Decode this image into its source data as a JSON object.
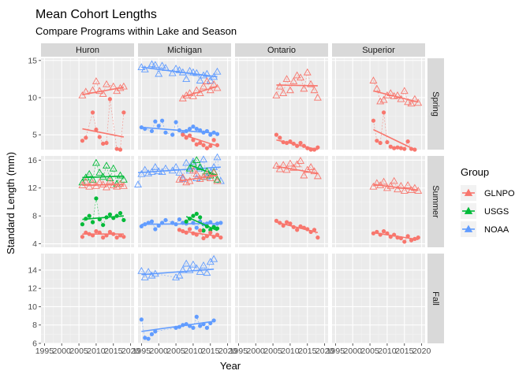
{
  "chart_data": {
    "type": "scatter",
    "title": "Mean Cohort Lengths",
    "subtitle": "Compare Programs within Lake and Season",
    "xlabel": "Year",
    "ylabel": "Standard Length  (mm)",
    "xlim": [
      1994,
      2021
    ],
    "x_ticks": [
      1995,
      2000,
      2005,
      2010,
      2015,
      2020
    ],
    "x_tick_labels": [
      "1995",
      "2000",
      "2005",
      "2010",
      "2015",
      "2020"
    ],
    "grid": true,
    "facet_cols": [
      "Huron",
      "Michigan",
      "Ontario",
      "Superior"
    ],
    "facet_rows": [
      {
        "name": "Spring",
        "ylim": [
          3,
          15.3
        ],
        "ticks": [
          5,
          10,
          15
        ],
        "tick_labels": [
          "5",
          "10",
          "15"
        ]
      },
      {
        "name": "Summer",
        "ylim": [
          3.5,
          16.6
        ],
        "ticks": [
          4,
          8,
          12,
          16
        ],
        "tick_labels": [
          "4",
          "8",
          "12",
          "16"
        ]
      },
      {
        "name": "Fall",
        "ylim": [
          6,
          15.8
        ],
        "ticks": [
          6,
          8,
          10,
          12,
          14
        ],
        "tick_labels": [
          "6",
          "8",
          "10",
          "12",
          "14"
        ]
      }
    ],
    "legend": {
      "title": "Group",
      "position": "right",
      "entries": [
        {
          "name": "GLNPO",
          "color": "#F8766D"
        },
        {
          "name": "USGS",
          "color": "#00BA38"
        },
        {
          "name": "NOAA",
          "color": "#619CFF"
        }
      ]
    },
    "series": [
      {
        "lake": "Huron",
        "season": "Spring",
        "group": "GLNPO",
        "marker": "triangle",
        "x": [
          2006,
          2007,
          2009,
          2010,
          2011,
          2012,
          2013,
          2015,
          2016,
          2017,
          2018
        ],
        "y": [
          10.3,
          10.8,
          11.0,
          12.2,
          10.9,
          10.5,
          11.8,
          11.5,
          10.9,
          11.3,
          11.5
        ],
        "fit": [
          10.4,
          11.4
        ]
      },
      {
        "lake": "Huron",
        "season": "Spring",
        "group": "GLNPO",
        "marker": "circle",
        "x": [
          2006,
          2007,
          2009,
          2010,
          2011,
          2012,
          2013,
          2014,
          2016,
          2017,
          2018
        ],
        "y": [
          4.2,
          4.6,
          8.0,
          5.7,
          4.7,
          3.8,
          3.9,
          9.8,
          3.1,
          3.0,
          8.0
        ],
        "fit": [
          5.8,
          4.7
        ]
      },
      {
        "lake": "Michigan",
        "season": "Spring",
        "group": "NOAA",
        "marker": "triangle",
        "x": [
          1995,
          1996,
          1998,
          1999,
          2000,
          2001,
          2002,
          2004,
          2005,
          2006,
          2007,
          2008,
          2009,
          2010,
          2011,
          2012,
          2013,
          2014,
          2015,
          2016,
          2017
        ],
        "y": [
          14.1,
          13.8,
          14.5,
          14.4,
          13.2,
          14.3,
          14.0,
          13.3,
          13.9,
          13.7,
          13.4,
          12.5,
          13.6,
          13.4,
          13.3,
          12.3,
          13.0,
          13.2,
          12.3,
          12.8,
          13.5
        ],
        "fit": [
          14.1,
          12.8
        ]
      },
      {
        "lake": "Michigan",
        "season": "Spring",
        "group": "GLNPO",
        "marker": "triangle",
        "x": [
          2007,
          2008,
          2009,
          2010,
          2011,
          2012,
          2013,
          2014,
          2015,
          2016,
          2017
        ],
        "y": [
          9.9,
          10.3,
          10.6,
          10.2,
          11.0,
          10.6,
          11.5,
          12.2,
          11.0,
          11.8,
          11.3
        ],
        "fit": [
          10.1,
          11.5
        ]
      },
      {
        "lake": "Michigan",
        "season": "Spring",
        "group": "NOAA",
        "marker": "circle",
        "x": [
          1995,
          1996,
          1998,
          1999,
          2000,
          2001,
          2002,
          2004,
          2005,
          2006,
          2007,
          2008,
          2009,
          2010,
          2011,
          2012,
          2013,
          2014,
          2015,
          2016,
          2017
        ],
        "y": [
          6.0,
          5.8,
          5.5,
          6.8,
          6.2,
          6.9,
          5.3,
          5.0,
          6.7,
          5.6,
          5.2,
          5.5,
          5.8,
          6.1,
          5.8,
          5.6,
          5.3,
          5.5,
          5.0,
          5.3,
          5.1
        ],
        "fit": [
          6.0,
          5.2
        ]
      },
      {
        "lake": "Michigan",
        "season": "Spring",
        "group": "GLNPO",
        "marker": "circle",
        "x": [
          2007,
          2008,
          2009,
          2010,
          2011,
          2012,
          2013,
          2014,
          2015,
          2016,
          2017
        ],
        "y": [
          5.0,
          4.6,
          4.9,
          4.3,
          3.7,
          3.9,
          3.6,
          3.2,
          3.5,
          4.3,
          3.6
        ],
        "fit": [
          5.0,
          3.5
        ]
      },
      {
        "lake": "Ontario",
        "season": "Spring",
        "group": "GLNPO",
        "marker": "triangle",
        "x": [
          2006,
          2007,
          2008,
          2009,
          2010,
          2011,
          2012,
          2013,
          2014,
          2015,
          2016,
          2017,
          2018
        ],
        "y": [
          10.3,
          11.5,
          10.6,
          12.5,
          11.0,
          12.2,
          13.0,
          12.7,
          11.2,
          13.4,
          11.8,
          11.0,
          10.0
        ],
        "fit": [
          11.7,
          11.6
        ]
      },
      {
        "lake": "Ontario",
        "season": "Spring",
        "group": "GLNPO",
        "marker": "circle",
        "x": [
          2006,
          2007,
          2008,
          2009,
          2010,
          2011,
          2012,
          2013,
          2014,
          2015,
          2016,
          2017,
          2018
        ],
        "y": [
          5.0,
          4.6,
          4.0,
          3.9,
          4.1,
          3.8,
          3.5,
          3.9,
          3.5,
          3.2,
          3.0,
          3.0,
          3.3
        ],
        "fit": [
          4.3,
          3.0
        ]
      },
      {
        "lake": "Superior",
        "season": "Spring",
        "group": "GLNPO",
        "marker": "triangle",
        "x": [
          2006,
          2007,
          2008,
          2009,
          2010,
          2011,
          2012,
          2013,
          2014,
          2015,
          2016,
          2017,
          2018,
          2019
        ],
        "y": [
          12.3,
          11.2,
          9.5,
          9.7,
          10.3,
          10.6,
          10.2,
          10.3,
          9.8,
          10.9,
          9.4,
          9.2,
          9.8,
          9.3
        ],
        "fit": [
          10.9,
          9.4
        ]
      },
      {
        "lake": "Superior",
        "season": "Spring",
        "group": "GLNPO",
        "marker": "circle",
        "x": [
          2006,
          2007,
          2008,
          2009,
          2010,
          2011,
          2012,
          2013,
          2014,
          2015,
          2016,
          2017,
          2018
        ],
        "y": [
          6.9,
          4.2,
          3.9,
          8.0,
          4.0,
          3.4,
          3.2,
          3.3,
          3.2,
          3.1,
          4.1,
          3.1,
          3.0
        ],
        "fit": [
          5.7,
          3.0
        ]
      },
      {
        "lake": "Huron",
        "season": "Summer",
        "group": "USGS",
        "marker": "triangle",
        "x": [
          2006,
          2007,
          2008,
          2009,
          2010,
          2011,
          2012,
          2013,
          2014,
          2015,
          2016,
          2017,
          2018
        ],
        "y": [
          12.8,
          13.5,
          14.0,
          13.2,
          15.6,
          14.2,
          13.6,
          15.2,
          13.4,
          14.8,
          12.6,
          13.8,
          13.2
        ],
        "fit": [
          13.5,
          13.7
        ]
      },
      {
        "lake": "Huron",
        "season": "Summer",
        "group": "GLNPO",
        "marker": "triangle",
        "x": [
          2006,
          2007,
          2008,
          2009,
          2010,
          2011,
          2012,
          2013,
          2014,
          2015,
          2016,
          2017,
          2018
        ],
        "y": [
          12.4,
          12.9,
          12.2,
          12.7,
          12.3,
          12.8,
          12.5,
          12.1,
          13.0,
          12.4,
          12.2,
          12.6,
          12.3
        ],
        "fit": [
          12.4,
          12.5
        ]
      },
      {
        "lake": "Huron",
        "season": "Summer",
        "group": "USGS",
        "marker": "circle",
        "x": [
          2006,
          2007,
          2008,
          2009,
          2010,
          2011,
          2012,
          2013,
          2014,
          2015,
          2016,
          2017,
          2018
        ],
        "y": [
          6.8,
          7.6,
          8.0,
          7.1,
          10.5,
          7.5,
          6.7,
          7.8,
          8.2,
          7.7,
          8.0,
          8.4,
          7.4
        ],
        "fit": [
          7.5,
          8.0
        ]
      },
      {
        "lake": "Huron",
        "season": "Summer",
        "group": "GLNPO",
        "marker": "circle",
        "x": [
          2006,
          2007,
          2008,
          2009,
          2010,
          2011,
          2012,
          2013,
          2014,
          2015,
          2016,
          2017,
          2018
        ],
        "y": [
          5.0,
          5.6,
          5.4,
          5.2,
          5.8,
          5.6,
          4.9,
          5.2,
          5.7,
          5.4,
          4.9,
          5.2,
          5.0
        ],
        "fit": [
          5.4,
          5.4
        ]
      },
      {
        "lake": "Michigan",
        "season": "Summer",
        "group": "NOAA",
        "marker": "triangle",
        "x": [
          1994,
          1995,
          1996,
          1997,
          1998,
          1999,
          2000,
          2001,
          2002,
          2004,
          2005,
          2006,
          2007,
          2008,
          2009,
          2010,
          2011,
          2012,
          2013,
          2014,
          2015,
          2016,
          2017,
          2018
        ],
        "y": [
          12.5,
          14.0,
          14.6,
          14.1,
          14.3,
          15.0,
          14.4,
          14.3,
          14.8,
          14.5,
          15.0,
          14.2,
          13.3,
          15.6,
          14.5,
          15.8,
          13.4,
          14.8,
          16.1,
          13.6,
          14.2,
          15.0,
          16.4,
          13.0
        ],
        "fit": [
          14.2,
          15.0
        ]
      },
      {
        "lake": "Michigan",
        "season": "Summer",
        "group": "USGS",
        "marker": "triangle",
        "x": [
          2009,
          2010,
          2011,
          2012,
          2013,
          2014,
          2015,
          2016,
          2017
        ],
        "y": [
          14.8,
          15.5,
          16.0,
          15.0,
          13.6,
          14.4,
          13.8,
          14.3,
          13.2
        ],
        "fit": [
          15.3,
          13.8
        ]
      },
      {
        "lake": "Michigan",
        "season": "Summer",
        "group": "GLNPO",
        "marker": "triangle",
        "x": [
          2006,
          2007,
          2008,
          2009,
          2010,
          2011,
          2012,
          2013,
          2014,
          2015,
          2016,
          2017
        ],
        "y": [
          13.2,
          13.5,
          12.8,
          13.0,
          14.5,
          14.0,
          13.3,
          13.6,
          14.0,
          13.4,
          14.2,
          13.0
        ],
        "fit": [
          13.0,
          13.8
        ]
      },
      {
        "lake": "Michigan",
        "season": "Summer",
        "group": "NOAA",
        "marker": "circle",
        "x": [
          1995,
          1996,
          1997,
          1998,
          1999,
          2000,
          2001,
          2002,
          2004,
          2005,
          2006,
          2007,
          2008,
          2009,
          2010,
          2011,
          2012,
          2013,
          2014,
          2015,
          2016,
          2017,
          2018
        ],
        "y": [
          6.5,
          6.8,
          7.0,
          7.2,
          6.1,
          6.6,
          7.0,
          7.4,
          7.0,
          6.8,
          7.5,
          7.0,
          6.9,
          7.6,
          7.0,
          6.3,
          7.2,
          6.8,
          6.9,
          7.1,
          6.5,
          6.9,
          7.0
        ],
        "fit": [
          6.8,
          6.9
        ]
      },
      {
        "lake": "Michigan",
        "season": "Summer",
        "group": "USGS",
        "marker": "circle",
        "x": [
          2008,
          2009,
          2010,
          2011,
          2012,
          2013,
          2014,
          2015,
          2016,
          2017
        ],
        "y": [
          7.2,
          7.6,
          8.0,
          8.3,
          7.8,
          5.9,
          6.5,
          6.0,
          6.4,
          6.2
        ],
        "fit": [
          7.9,
          5.9
        ]
      },
      {
        "lake": "Michigan",
        "season": "Summer",
        "group": "GLNPO",
        "marker": "circle",
        "x": [
          2006,
          2007,
          2008,
          2009,
          2010,
          2011,
          2012,
          2013,
          2014,
          2015,
          2016,
          2017,
          2018
        ],
        "y": [
          6.0,
          5.8,
          5.6,
          6.1,
          5.5,
          5.3,
          5.9,
          4.8,
          5.1,
          5.6,
          5.0,
          5.3,
          4.9
        ],
        "fit": [
          5.9,
          5.0
        ]
      },
      {
        "lake": "Ontario",
        "season": "Summer",
        "group": "GLNPO",
        "marker": "triangle",
        "x": [
          2006,
          2007,
          2008,
          2009,
          2010,
          2011,
          2012,
          2013,
          2014,
          2015,
          2016,
          2017,
          2018
        ],
        "y": [
          15.2,
          14.7,
          15.3,
          14.6,
          15.5,
          14.9,
          15.4,
          15.9,
          13.8,
          14.6,
          15.0,
          14.4,
          13.7
        ],
        "fit": [
          15.1,
          14.1
        ]
      },
      {
        "lake": "Ontario",
        "season": "Summer",
        "group": "GLNPO",
        "marker": "circle",
        "x": [
          2006,
          2007,
          2008,
          2009,
          2010,
          2011,
          2012,
          2013,
          2014,
          2015,
          2016,
          2017,
          2018
        ],
        "y": [
          7.3,
          7.0,
          6.6,
          7.1,
          6.9,
          6.4,
          6.0,
          6.5,
          6.3,
          6.1,
          5.7,
          6.0,
          4.9
        ],
        "fit": [
          7.1,
          5.6
        ]
      },
      {
        "lake": "Superior",
        "season": "Summer",
        "group": "GLNPO",
        "marker": "triangle",
        "x": [
          2006,
          2007,
          2008,
          2009,
          2010,
          2011,
          2012,
          2013,
          2014,
          2015,
          2016,
          2017,
          2018,
          2019
        ],
        "y": [
          12.2,
          12.7,
          12.4,
          12.9,
          12.0,
          12.3,
          13.0,
          11.8,
          12.3,
          11.6,
          12.4,
          11.7,
          12.0,
          11.6
        ],
        "fit": [
          12.5,
          11.7
        ]
      },
      {
        "lake": "Superior",
        "season": "Summer",
        "group": "GLNPO",
        "marker": "circle",
        "x": [
          2006,
          2007,
          2008,
          2009,
          2010,
          2011,
          2012,
          2013,
          2014,
          2015,
          2016,
          2017,
          2018,
          2019
        ],
        "y": [
          5.5,
          5.7,
          5.3,
          5.8,
          5.5,
          5.0,
          5.3,
          4.9,
          4.8,
          4.3,
          5.1,
          4.5,
          4.7,
          4.9
        ],
        "fit": [
          5.6,
          4.6
        ]
      },
      {
        "lake": "Michigan",
        "season": "Fall",
        "group": "NOAA",
        "marker": "triangle",
        "x": [
          1995,
          1996,
          1997,
          1998,
          1999,
          2005,
          2006,
          2007,
          2008,
          2009,
          2010,
          2011,
          2012,
          2013,
          2014,
          2015,
          2016
        ],
        "y": [
          13.9,
          13.2,
          13.8,
          13.4,
          13.6,
          13.2,
          13.4,
          14.0,
          14.7,
          14.0,
          14.6,
          14.2,
          13.8,
          14.5,
          13.7,
          14.9,
          15.2
        ],
        "fit": [
          13.5,
          14.1
        ]
      },
      {
        "lake": "Michigan",
        "season": "Fall",
        "group": "NOAA",
        "marker": "circle",
        "x": [
          1995,
          1996,
          1997,
          1998,
          1999,
          2005,
          2006,
          2007,
          2008,
          2009,
          2010,
          2011,
          2012,
          2013,
          2014,
          2015,
          2016
        ],
        "y": [
          8.6,
          6.6,
          6.5,
          7.0,
          7.3,
          7.7,
          7.8,
          8.0,
          8.1,
          7.9,
          7.7,
          8.9,
          7.9,
          8.1,
          7.7,
          8.2,
          8.5
        ],
        "fit": [
          7.3,
          8.4
        ]
      }
    ]
  }
}
